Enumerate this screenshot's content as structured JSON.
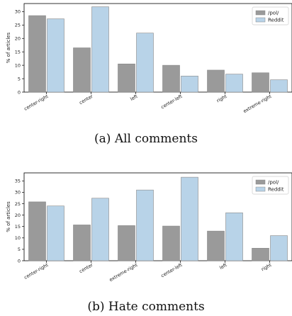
{
  "chart_data": [
    {
      "type": "bar",
      "caption": "(a)  All comments",
      "categories": [
        "center-right",
        "center",
        "left",
        "center-left",
        "right",
        "extreme-right"
      ],
      "series": [
        {
          "name": "/pol/",
          "color": "#9a9a9a",
          "values": [
            28.5,
            16.5,
            10.5,
            10.0,
            8.2,
            7.2
          ]
        },
        {
          "name": "Reddit",
          "color": "#b8d3e8",
          "values": [
            27.3,
            31.8,
            22.0,
            6.0,
            6.7,
            4.6
          ]
        }
      ],
      "xlabel": "",
      "ylabel": "% of articles",
      "ylim": [
        0,
        33
      ],
      "yticks": [
        0,
        5,
        10,
        15,
        20,
        25,
        30
      ],
      "legend": "top-right",
      "grid": false
    },
    {
      "type": "bar",
      "caption": "(b)  Hate comments",
      "categories": [
        "center-right",
        "center",
        "extreme-right",
        "center-left",
        "left",
        "right"
      ],
      "series": [
        {
          "name": "/pol/",
          "color": "#9a9a9a",
          "values": [
            25.8,
            15.7,
            15.4,
            15.2,
            13.0,
            5.5
          ]
        },
        {
          "name": "Reddit",
          "color": "#b8d3e8",
          "values": [
            24.0,
            27.4,
            31.0,
            36.6,
            21.0,
            11.0
          ]
        }
      ],
      "xlabel": "",
      "ylabel": "% of articles",
      "ylim": [
        0,
        38.5
      ],
      "yticks": [
        0,
        5,
        10,
        15,
        20,
        25,
        30,
        35
      ],
      "legend": "top-right",
      "grid": false
    }
  ]
}
